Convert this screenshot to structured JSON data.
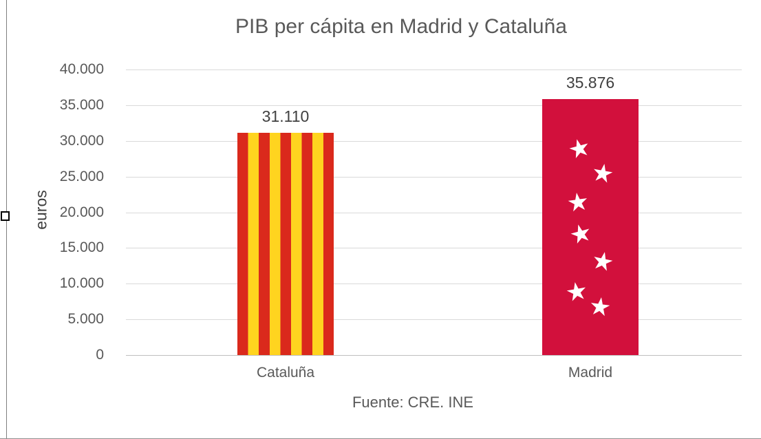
{
  "chart_data": {
    "type": "bar",
    "title": "PIB per cápita en Madrid y Cataluña",
    "ylabel": "euros",
    "xlabel": "",
    "categories": [
      "Cataluña",
      "Madrid"
    ],
    "values": [
      31110,
      35876
    ],
    "value_labels": [
      "31.110",
      "35.876"
    ],
    "ylim": [
      0,
      40000
    ],
    "ytick_step": 5000,
    "ytick_labels": [
      "0",
      "5.000",
      "10.000",
      "15.000",
      "20.000",
      "25.000",
      "30.000",
      "35.000",
      "40.000"
    ],
    "grid": true,
    "legend_position": "none",
    "source_note": "Fuente: CRE. INE",
    "bar_styles": [
      {
        "category": "Cataluña",
        "style": "senyera-vertical-stripes",
        "stripe_red": "#da291c",
        "stripe_yellow": "#ffd41f"
      },
      {
        "category": "Madrid",
        "style": "madrid-flag-stars",
        "fill": "#d2103c",
        "star_color": "#ffffff",
        "star_count": 7
      }
    ],
    "colors": {
      "text_gray": "#595959",
      "grid_gray": "#d9d9d9",
      "madrid_red": "#d2103c",
      "senyera_red": "#da291c",
      "senyera_yellow": "#ffd41f",
      "star_white": "#ffffff"
    }
  }
}
